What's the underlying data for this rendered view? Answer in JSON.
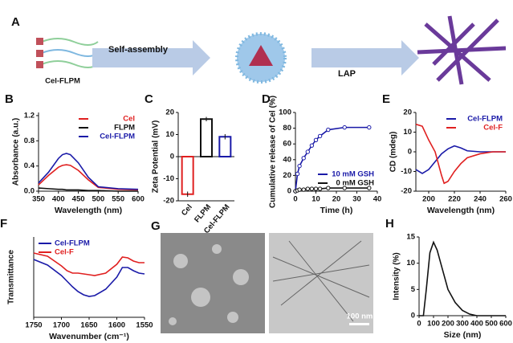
{
  "schematic": {
    "panel": "A",
    "molecule": "Cel-FLPM",
    "step1": "Self-assembly",
    "step2": "LAP"
  },
  "images": {
    "panel": "G",
    "scale_bar": "100 nm"
  },
  "chart_data": [
    {
      "type": "line",
      "panel": "B",
      "xlabel": "Wavelength (nm)",
      "ylabel": "Absorbance (a.u.)",
      "xlim": [
        350,
        600
      ],
      "xticks": [
        350,
        400,
        450,
        500,
        550,
        600
      ],
      "ylim": [
        0,
        1.25
      ],
      "yticks": [
        {
          "value": 0,
          "label": "0.0"
        },
        {
          "value": 0.4,
          "label": "0.4"
        },
        {
          "value": 0.8,
          "label": "0.8"
        },
        {
          "value": 1.2,
          "label": "1.2"
        }
      ],
      "legend": "upper right",
      "x": [
        350,
        375,
        400,
        410,
        420,
        430,
        450,
        475,
        500,
        550,
        600
      ],
      "series": [
        {
          "name": "Cel",
          "color": "#e02020",
          "values": [
            0.1,
            0.25,
            0.38,
            0.41,
            0.42,
            0.41,
            0.33,
            0.18,
            0.06,
            0.03,
            0.02
          ]
        },
        {
          "name": "FLPM",
          "color": "#111111",
          "values": [
            0.05,
            0.04,
            0.03,
            0.03,
            0.02,
            0.02,
            0.02,
            0.01,
            0.01,
            0,
            0
          ]
        },
        {
          "name": "Cel-FLPM",
          "color": "#1a1aa8",
          "values": [
            0.13,
            0.3,
            0.52,
            0.58,
            0.6,
            0.58,
            0.45,
            0.22,
            0.07,
            0.04,
            0.03
          ]
        }
      ]
    },
    {
      "type": "bar",
      "panel": "C",
      "ylabel": "Zeta Potential (mV)",
      "ylim": [
        -20,
        20
      ],
      "yticks": [
        -20,
        -10,
        0,
        10,
        20
      ],
      "categories": [
        "Cel",
        "FLPM",
        "Cel-FLPM"
      ],
      "values": [
        -17,
        17,
        9
      ],
      "errors": [
        1.2,
        1,
        1.2
      ],
      "colors": [
        "#e02020",
        "#111111",
        "#1a1aa8"
      ]
    },
    {
      "type": "line",
      "panel": "D",
      "xlabel": "Time (h)",
      "ylabel": "Cumulative release of Cel (%)",
      "xlim": [
        0,
        40
      ],
      "xticks": [
        0,
        10,
        20,
        30,
        40
      ],
      "ylim": [
        0,
        100
      ],
      "yticks": [
        0,
        20,
        40,
        60,
        80,
        100
      ],
      "legend": "lower right",
      "markers": true,
      "x": [
        0,
        1,
        2,
        4,
        6,
        8,
        10,
        12,
        16,
        24,
        36
      ],
      "series": [
        {
          "name": "10 mM GSH",
          "color": "#1a1aa8",
          "values": [
            0,
            22,
            32,
            42,
            50,
            58,
            65,
            70,
            78,
            81,
            81
          ]
        },
        {
          "name": "0 mM GSH",
          "color": "#111111",
          "values": [
            0,
            1,
            2,
            2,
            3,
            3,
            3,
            3,
            4,
            4,
            4
          ]
        }
      ]
    },
    {
      "type": "line",
      "panel": "E",
      "xlabel": "Wavelength (nm)",
      "ylabel": "CD (mdeg)",
      "xlim": [
        190,
        260
      ],
      "xticks": [
        200,
        220,
        240,
        260
      ],
      "ylim": [
        -20,
        20
      ],
      "yticks": [
        -20,
        -10,
        0,
        10,
        20
      ],
      "legend": "upper right",
      "x": [
        190,
        195,
        200,
        205,
        210,
        212,
        215,
        220,
        225,
        230,
        240,
        250,
        260
      ],
      "series": [
        {
          "name": "Cel-FLPM",
          "color": "#1a1aa8",
          "values": [
            -9,
            -11,
            -9,
            -5,
            -1,
            0,
            1.5,
            3,
            2,
            0.5,
            0,
            0,
            0
          ]
        },
        {
          "name": "Cel-F",
          "color": "#e02020",
          "values": [
            14,
            13,
            6,
            0,
            -12,
            -16,
            -15,
            -10,
            -6,
            -3,
            -1,
            0,
            0
          ]
        }
      ]
    },
    {
      "type": "line",
      "panel": "F",
      "xlabel": "Wavenumber (cm⁻¹)",
      "ylabel": "Transmittance",
      "xlim": [
        1750,
        1550
      ],
      "xticks": [
        1750,
        1700,
        1650,
        1600,
        1550
      ],
      "ylim": [
        0,
        100
      ],
      "yticks": [],
      "legend": "upper left",
      "x": [
        1750,
        1725,
        1700,
        1690,
        1680,
        1670,
        1660,
        1650,
        1640,
        1620,
        1600,
        1590,
        1580,
        1570,
        1560,
        1550
      ],
      "series": [
        {
          "name": "Cel-FLPM",
          "color": "#1a1aa8",
          "values": [
            72,
            65,
            52,
            45,
            38,
            32,
            28,
            26,
            27,
            35,
            50,
            62,
            62,
            58,
            55,
            54
          ]
        },
        {
          "name": "Cel-F",
          "color": "#e02020",
          "values": [
            80,
            76,
            64,
            58,
            55,
            55,
            54,
            53,
            52,
            55,
            66,
            75,
            74,
            70,
            68,
            68
          ]
        }
      ]
    },
    {
      "type": "line",
      "panel": "H",
      "xlabel": "Size (nm)",
      "ylabel": "Intensity (%)",
      "xlim": [
        0,
        600
      ],
      "xticks": [
        0,
        100,
        200,
        300,
        400,
        500,
        600
      ],
      "ylim": [
        0,
        15
      ],
      "yticks": [
        0,
        5,
        10,
        15
      ],
      "x": [
        0,
        30,
        50,
        75,
        100,
        125,
        150,
        200,
        250,
        300,
        350,
        400,
        500,
        600
      ],
      "series": [
        {
          "color": "#111111",
          "values": [
            0,
            0,
            5,
            12,
            14,
            12.5,
            10,
            5,
            2.5,
            1,
            0.3,
            0,
            0,
            0
          ]
        }
      ]
    }
  ]
}
